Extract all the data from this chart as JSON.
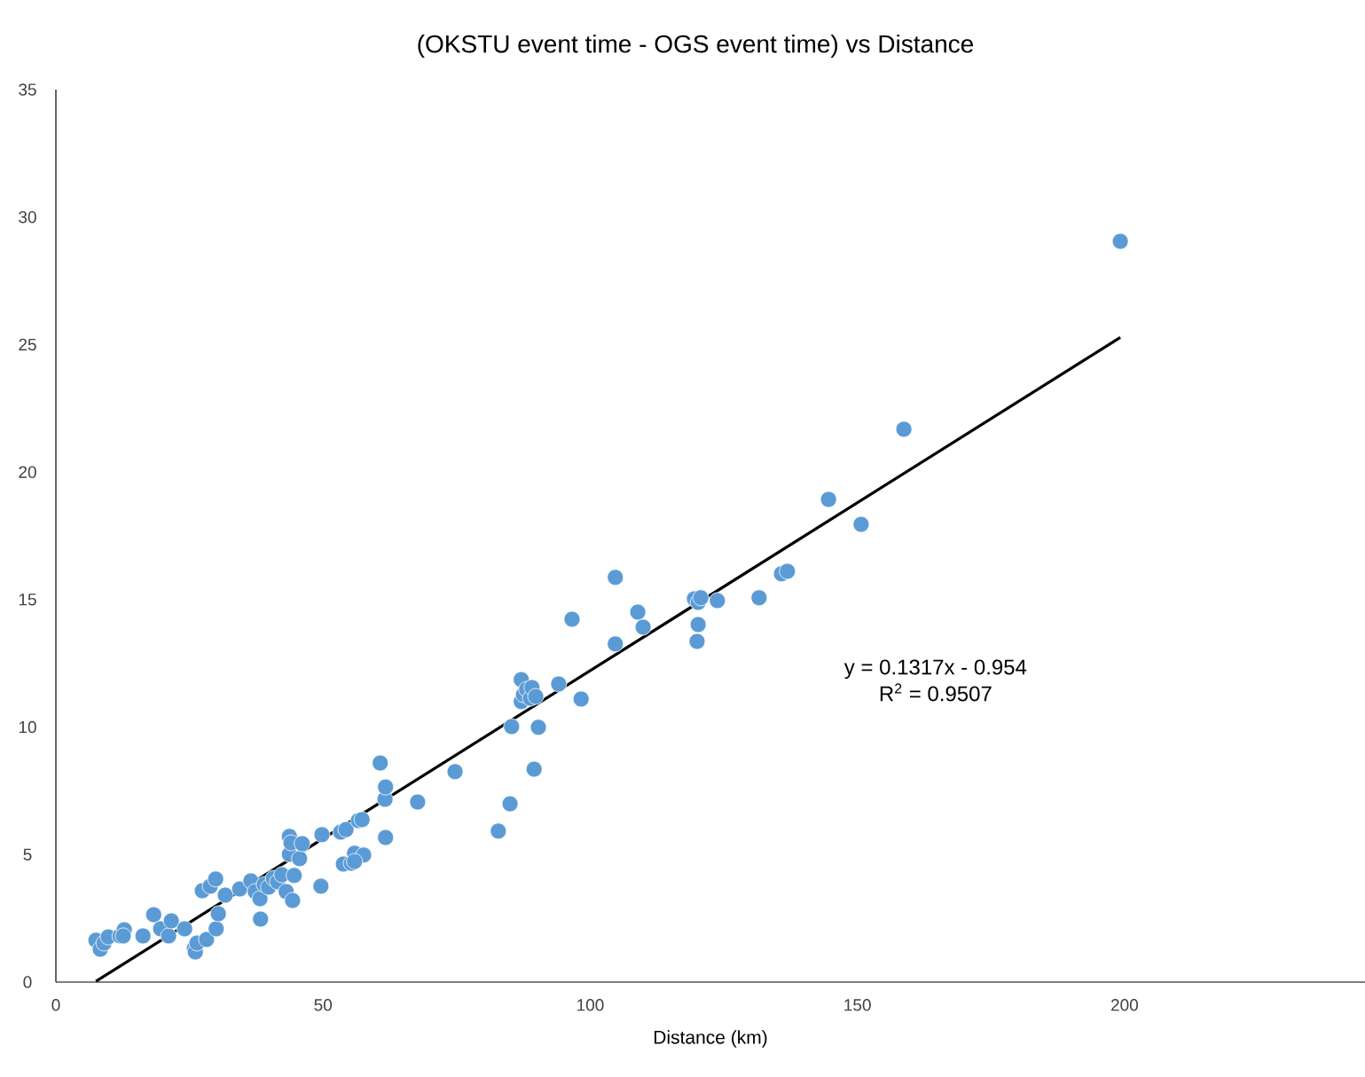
{
  "chart_data": {
    "type": "scatter",
    "title": "(OKSTU event time - OGS event time) vs Distance",
    "xlabel": "Distance (km)",
    "marker": "circle",
    "xlim": [
      0,
      245
    ],
    "ylim": [
      0,
      35
    ],
    "xticks": [
      0,
      50,
      100,
      150,
      200
    ],
    "yticks": [
      0,
      5,
      10,
      15,
      20,
      25,
      30,
      35
    ],
    "annotations": [
      "y = 0.1317x - 0.954",
      "R$^{2}$ = 0.9507"
    ],
    "series": [
      {
        "color": "#5b9bd5",
        "x": [
          7.5,
          8.3,
          9.0,
          9.8,
          12.0,
          12.8,
          12.6,
          16.3,
          18.3,
          19.6,
          21.1,
          21.6,
          24.1,
          25.9,
          26.1,
          26.4,
          27.4,
          28.2,
          28.9,
          29.9,
          30.0,
          30.4,
          31.7,
          34.4,
          36.5,
          37.3,
          38.2,
          38.3,
          39.0,
          39.8,
          40.7,
          41.5,
          42.3,
          43.1,
          43.7,
          43.7,
          44.0,
          44.3,
          44.6,
          45.6,
          46.1,
          49.6,
          49.8,
          53.3,
          53.8,
          54.3,
          55.3,
          55.9,
          56.6,
          57.3,
          57.6,
          55.9,
          60.7,
          61.6,
          61.7,
          61.7,
          67.7,
          74.7,
          82.8,
          85.0,
          85.3,
          87.1,
          87.1,
          87.5,
          88.1,
          88.8,
          89.1,
          89.5,
          89.8,
          90.3,
          94.1,
          96.6,
          98.3,
          104.7,
          104.7,
          108.9,
          109.9,
          119.5,
          120.2,
          120.7,
          120.2,
          120.0,
          123.8,
          131.6,
          135.8,
          136.9,
          144.6,
          150.7,
          158.7,
          199.2
        ],
        "values": [
          1.64,
          1.29,
          1.53,
          1.77,
          1.81,
          2.05,
          1.81,
          1.81,
          2.64,
          2.09,
          1.81,
          2.4,
          2.09,
          1.32,
          1.18,
          1.53,
          3.58,
          1.67,
          3.76,
          4.04,
          2.09,
          2.68,
          3.41,
          3.65,
          3.97,
          3.55,
          3.27,
          2.47,
          3.83,
          3.72,
          4.07,
          3.93,
          4.21,
          3.55,
          5.71,
          5.01,
          5.46,
          3.2,
          4.18,
          4.84,
          5.43,
          3.76,
          5.78,
          5.88,
          4.63,
          5.98,
          4.66,
          5.05,
          6.33,
          6.37,
          4.98,
          4.73,
          8.59,
          7.17,
          7.65,
          5.67,
          7.06,
          8.25,
          5.92,
          6.99,
          10.02,
          11.86,
          11.0,
          11.27,
          11.48,
          11.13,
          11.55,
          8.35,
          11.2,
          9.99,
          11.69,
          14.23,
          11.1,
          13.26,
          15.87,
          14.51,
          13.92,
          15.03,
          14.89,
          15.07,
          14.02,
          13.36,
          14.96,
          15.07,
          16.01,
          16.11,
          18.93,
          17.95,
          21.68,
          29.05
        ]
      },
      {
        "type": "line",
        "marker": "none",
        "color": "#000000",
        "x": [
          7.5,
          199.2
        ],
        "values": [
          0.03,
          25.28
        ]
      }
    ]
  }
}
